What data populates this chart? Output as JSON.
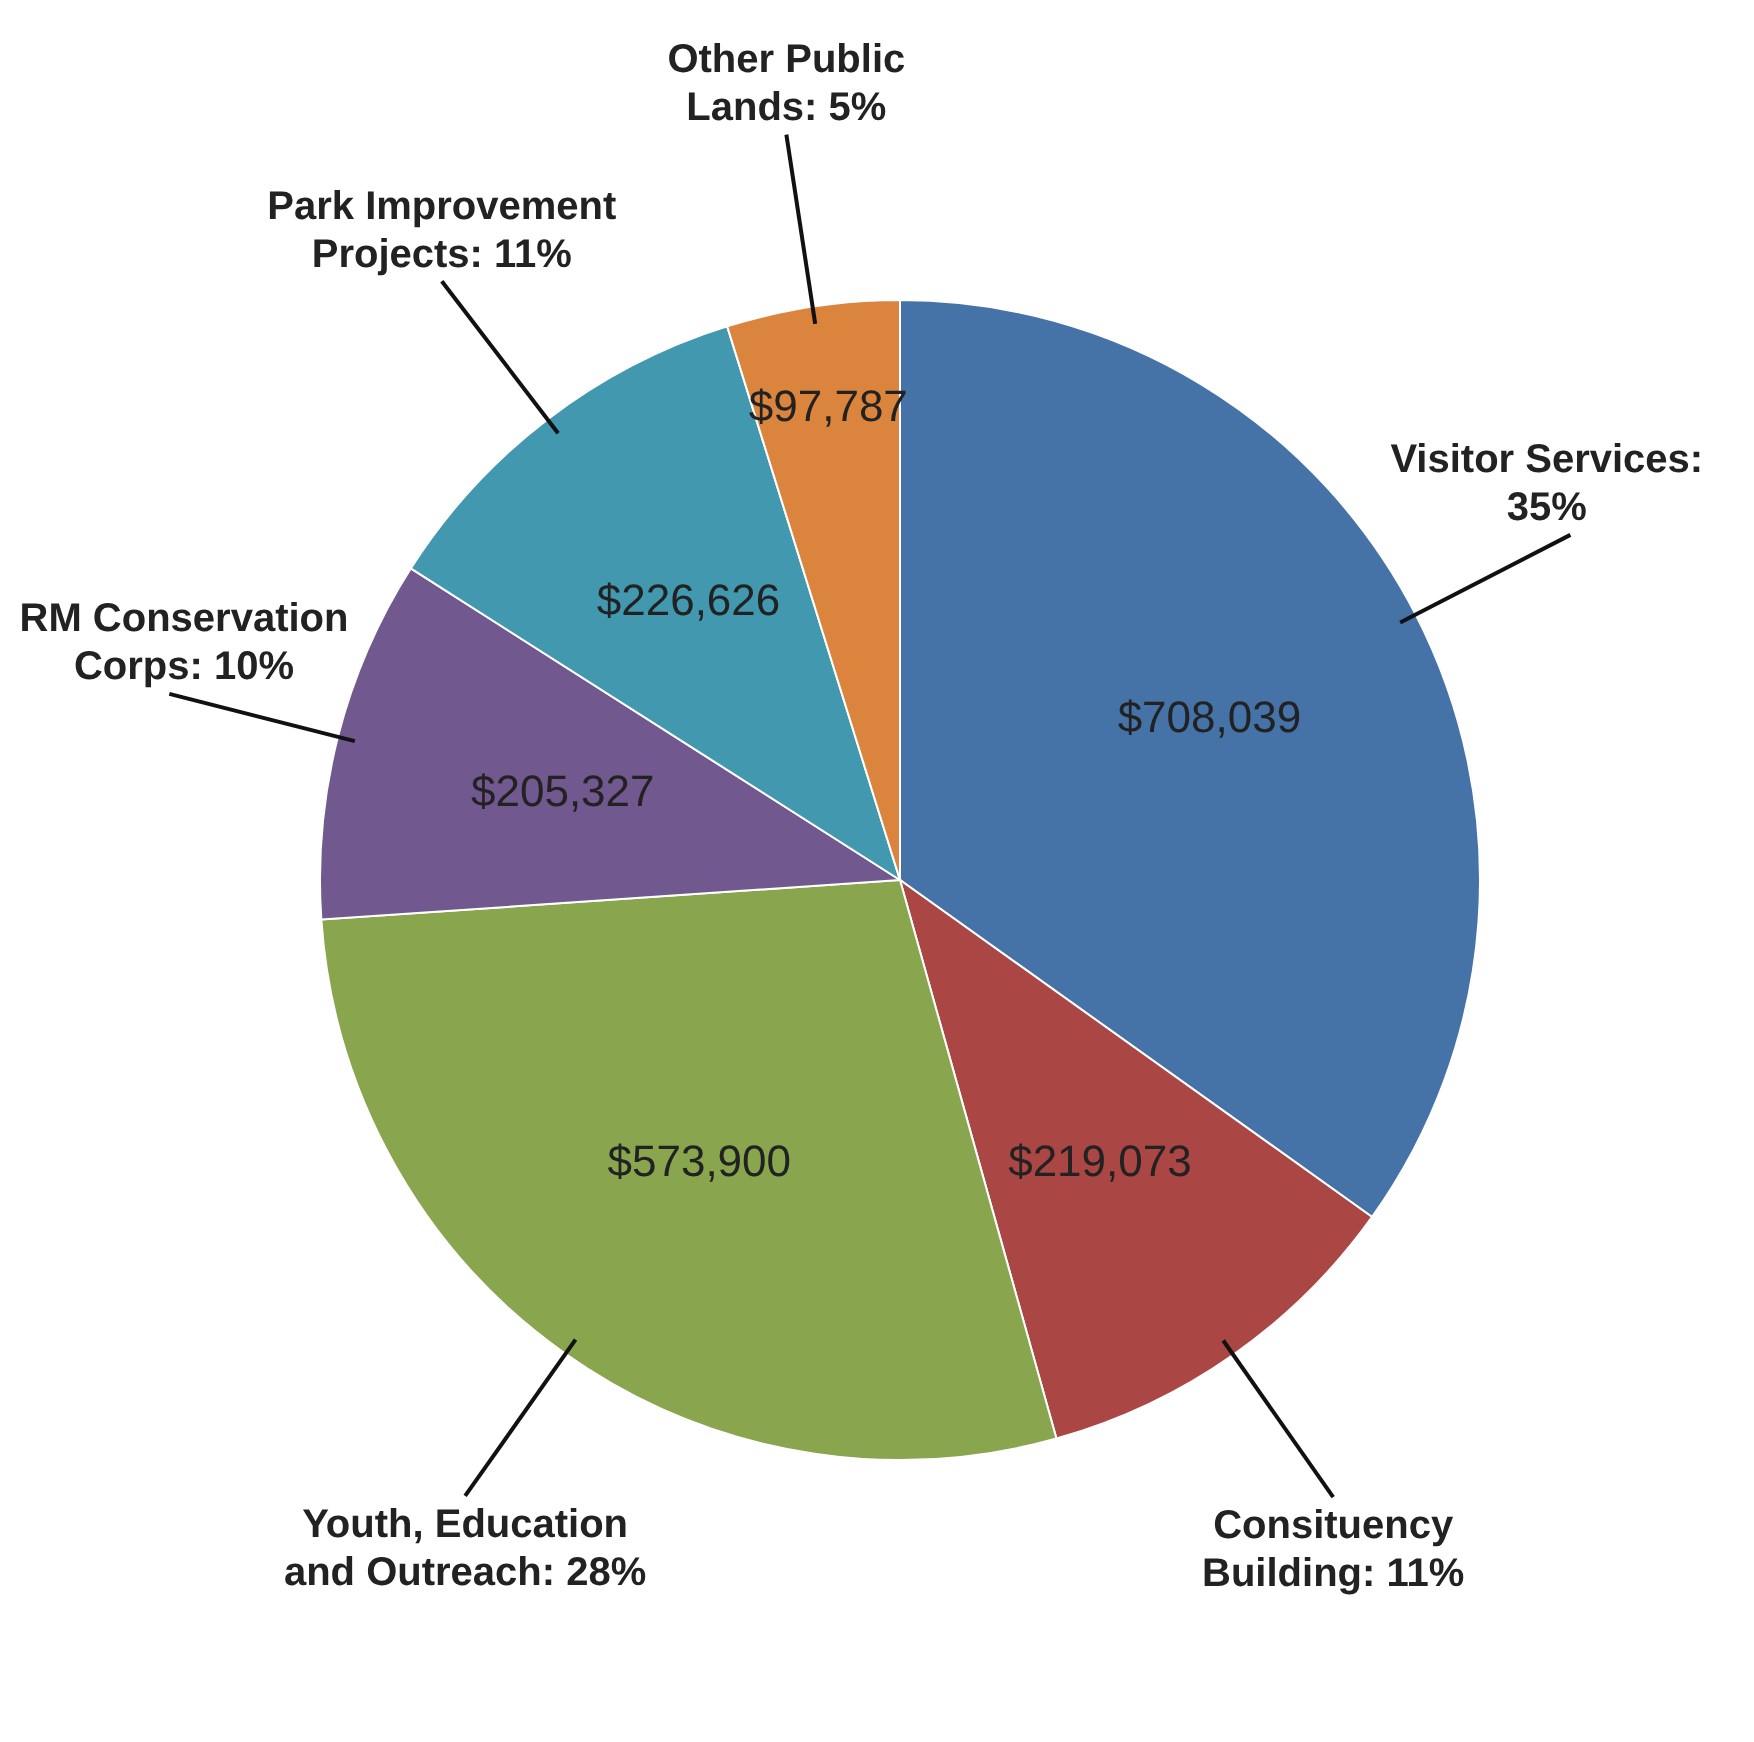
{
  "chart_data": {
    "type": "pie",
    "categories": [
      "Visitor Services: 35%",
      "Consituency Building: 11%",
      "Youth, Education and Outreach: 28%",
      "RM Conservation Corps: 10%",
      "Park Improvement Projects: 11%",
      "Other Public Lands: 5%"
    ],
    "values": [
      708039,
      219073,
      573900,
      205327,
      226626,
      97787
    ],
    "value_labels": [
      "$708,039",
      "$219,073",
      "$573,900",
      "$205,327",
      "$226,626",
      "$97,787"
    ],
    "colors": [
      "#4572a7",
      "#aa4643",
      "#89a54e",
      "#71588f",
      "#4198af",
      "#db843d"
    ]
  }
}
